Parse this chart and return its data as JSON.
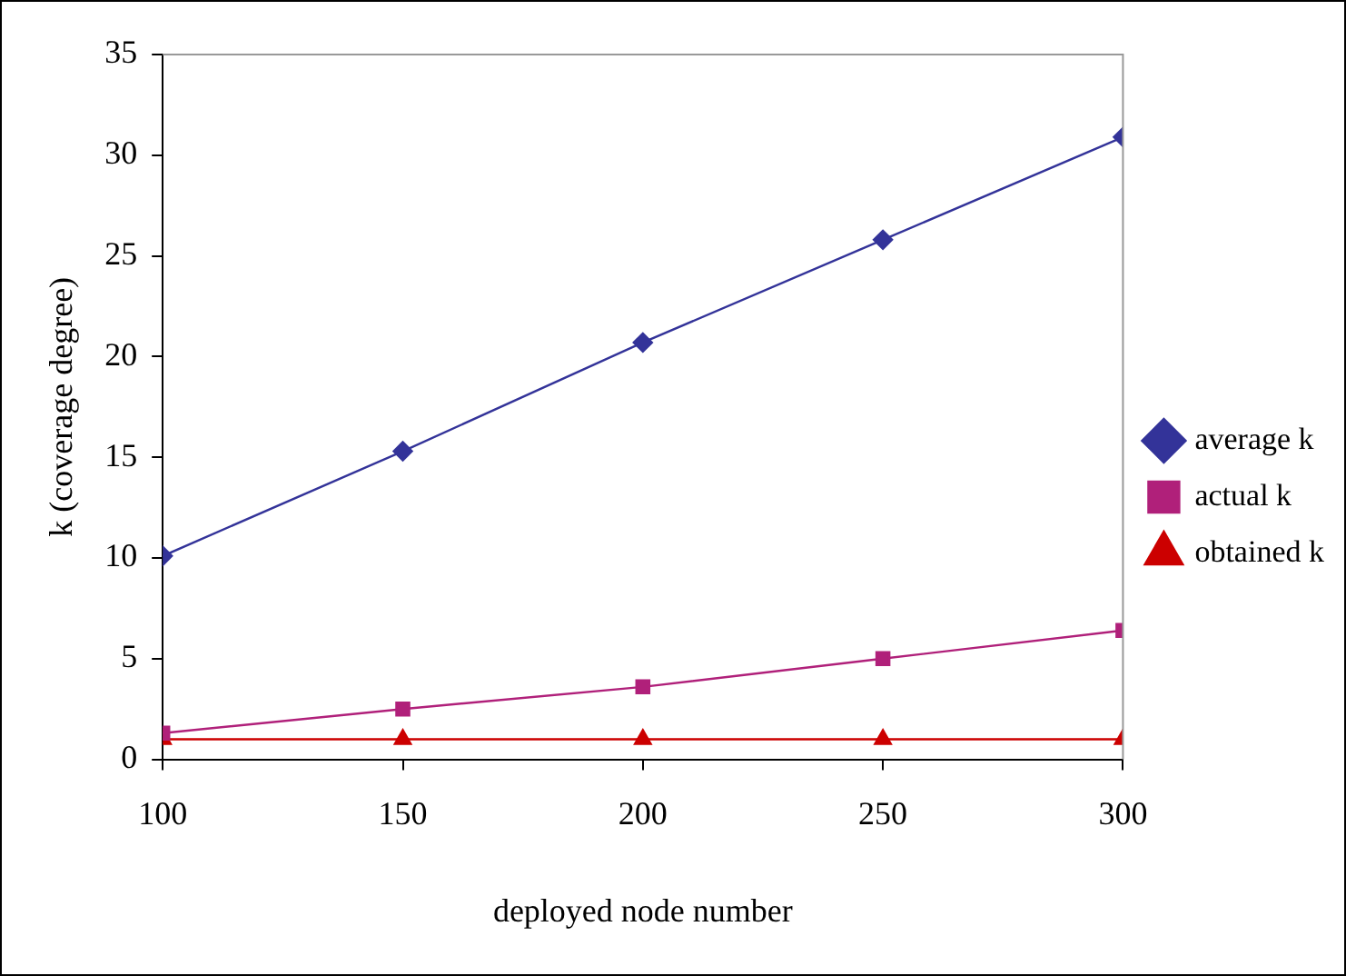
{
  "chart_data": {
    "type": "line",
    "xlabel": "deployed node number",
    "ylabel": "k (coverage degree)",
    "x": [
      100,
      150,
      200,
      250,
      300
    ],
    "series": [
      {
        "name": "average k",
        "color": "#333399",
        "marker": "diamond",
        "values": [
          10.1,
          15.3,
          20.7,
          25.8,
          30.9
        ]
      },
      {
        "name": "actual k",
        "color": "#b0207a",
        "marker": "square",
        "values": [
          1.3,
          2.5,
          3.6,
          5.0,
          6.4
        ]
      },
      {
        "name": "obtained k",
        "color": "#cc0000",
        "marker": "triangle",
        "values": [
          1,
          1,
          1,
          1,
          1
        ]
      }
    ],
    "xlim": [
      100,
      300
    ],
    "xticks": [
      100,
      150,
      200,
      250,
      300
    ],
    "ylim": [
      0,
      35
    ],
    "yticks": [
      0,
      5,
      10,
      15,
      20,
      25,
      30,
      35
    ],
    "grid": false,
    "legend": "right"
  }
}
